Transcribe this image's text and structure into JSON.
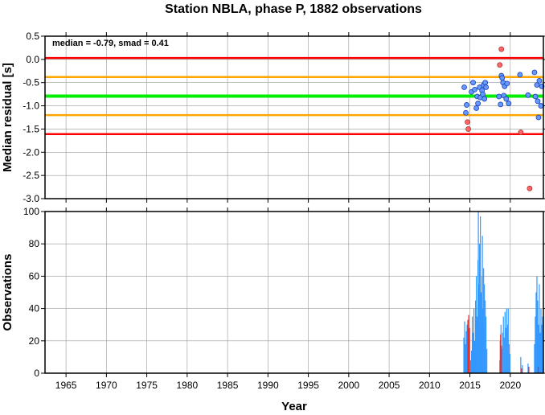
{
  "title": "Station NBLA, phase P, 1882 observations",
  "x_axis_label": "Year",
  "colors": {
    "accent_red": "#ff0000",
    "accent_orange": "#ffa500",
    "accent_green": "#00ee00",
    "point_blue": "#6699ff",
    "point_red": "#ff6666",
    "bar_blue": "#3399ff",
    "bar_red": "#e03030",
    "grid": "#999999"
  },
  "chart_data": [
    {
      "type": "scatter",
      "ylabel": "Median residual [s]",
      "annotation": "median = -0.79, smad = 0.41",
      "xlim": [
        1962.4,
        2024.1
      ],
      "ylim": [
        -3.0,
        0.5
      ],
      "x_ticks": [
        1965,
        1970,
        1975,
        1980,
        1985,
        1990,
        1995,
        2000,
        2005,
        2010,
        2015,
        2020
      ],
      "y_ticks": [
        0.5,
        0.0,
        -0.5,
        -1.0,
        -1.5,
        -2.0,
        -2.5,
        -3.0
      ],
      "y_tick_labels": [
        "0.5",
        "0.0",
        "-0.5",
        "-1.0",
        "-1.5",
        "-2.0",
        "-2.5",
        "-3.0"
      ],
      "grid": true,
      "reference_lines": [
        {
          "y": 0.03,
          "color": "red"
        },
        {
          "y": -0.38,
          "color": "orange"
        },
        {
          "y": -0.79,
          "color": "green"
        },
        {
          "y": -1.2,
          "color": "orange"
        },
        {
          "y": -1.61,
          "color": "red"
        }
      ],
      "series": [
        {
          "color": "blue",
          "points": [
            [
              2014.3,
              -0.6
            ],
            [
              2014.5,
              -1.15
            ],
            [
              2014.6,
              -0.98
            ],
            [
              2015.2,
              -0.7
            ],
            [
              2015.4,
              -0.5
            ],
            [
              2015.6,
              -0.65
            ],
            [
              2015.8,
              -1.05
            ],
            [
              2015.9,
              -0.8
            ],
            [
              2016.0,
              -0.95
            ],
            [
              2016.2,
              -0.6
            ],
            [
              2016.3,
              -0.82
            ],
            [
              2016.5,
              -0.67
            ],
            [
              2016.6,
              -0.75
            ],
            [
              2016.7,
              -0.55
            ],
            [
              2016.8,
              -0.85
            ],
            [
              2016.9,
              -0.5
            ],
            [
              2017.0,
              -0.6
            ],
            [
              2018.6,
              -0.8
            ],
            [
              2018.8,
              -0.97
            ],
            [
              2018.9,
              -0.35
            ],
            [
              2019.0,
              -0.4
            ],
            [
              2019.1,
              -0.5
            ],
            [
              2019.2,
              -0.78
            ],
            [
              2019.3,
              -0.58
            ],
            [
              2019.5,
              -0.85
            ],
            [
              2019.6,
              -0.52
            ],
            [
              2019.8,
              -0.95
            ],
            [
              2021.2,
              -0.33
            ],
            [
              2022.2,
              -0.77
            ],
            [
              2023.0,
              -0.28
            ],
            [
              2023.1,
              -0.8
            ],
            [
              2023.3,
              -0.55
            ],
            [
              2023.4,
              -0.9
            ],
            [
              2023.5,
              -1.25
            ],
            [
              2023.6,
              -0.46
            ],
            [
              2023.8,
              -1.0
            ],
            [
              2023.9,
              -0.58
            ]
          ]
        },
        {
          "color": "red",
          "points": [
            [
              2014.7,
              -1.35
            ],
            [
              2014.8,
              -1.5
            ],
            [
              2018.7,
              -0.12
            ],
            [
              2018.9,
              0.22
            ],
            [
              2021.3,
              -1.57
            ],
            [
              2022.4,
              -2.78
            ]
          ]
        }
      ]
    },
    {
      "type": "bar",
      "ylabel": "Observations",
      "xlim": [
        1962.4,
        2024.1
      ],
      "ylim": [
        0,
        100
      ],
      "x_ticks": [
        1965,
        1970,
        1975,
        1980,
        1985,
        1990,
        1995,
        2000,
        2005,
        2010,
        2015,
        2020
      ],
      "x_tick_labels": [
        "1965",
        "1970",
        "1975",
        "1980",
        "1985",
        "1990",
        "1995",
        "2000",
        "2005",
        "2010",
        "2015",
        "2020"
      ],
      "y_ticks": [
        0,
        20,
        40,
        60,
        80,
        100
      ],
      "y_tick_labels": [
        "0",
        "20",
        "40",
        "60",
        "80",
        "100"
      ],
      "grid": true,
      "series": [
        {
          "color": "blue",
          "bars": [
            [
              2014.25,
              22
            ],
            [
              2014.35,
              32
            ],
            [
              2014.45,
              18
            ],
            [
              2014.55,
              26
            ],
            [
              2014.65,
              30
            ],
            [
              2015.1,
              8
            ],
            [
              2015.2,
              14
            ],
            [
              2015.3,
              35
            ],
            [
              2015.4,
              25
            ],
            [
              2015.5,
              40
            ],
            [
              2015.6,
              20
            ],
            [
              2015.7,
              45
            ],
            [
              2015.8,
              60
            ],
            [
              2015.9,
              35
            ],
            [
              2016.0,
              70
            ],
            [
              2016.05,
              100
            ],
            [
              2016.1,
              55
            ],
            [
              2016.2,
              80
            ],
            [
              2016.25,
              45
            ],
            [
              2016.3,
              97
            ],
            [
              2016.4,
              50
            ],
            [
              2016.45,
              30
            ],
            [
              2016.5,
              60
            ],
            [
              2016.55,
              85
            ],
            [
              2016.6,
              40
            ],
            [
              2016.7,
              65
            ],
            [
              2016.75,
              28
            ],
            [
              2016.8,
              55
            ],
            [
              2016.9,
              45
            ],
            [
              2017.0,
              35
            ],
            [
              2017.1,
              15
            ],
            [
              2018.7,
              8
            ],
            [
              2018.75,
              20
            ],
            [
              2018.85,
              30
            ],
            [
              2018.95,
              15
            ],
            [
              2019.05,
              25
            ],
            [
              2019.15,
              35
            ],
            [
              2019.25,
              22
            ],
            [
              2019.35,
              38
            ],
            [
              2019.45,
              28
            ],
            [
              2019.55,
              40
            ],
            [
              2019.65,
              30
            ],
            [
              2019.75,
              40
            ],
            [
              2019.85,
              18
            ],
            [
              2019.95,
              12
            ],
            [
              2021.3,
              10
            ],
            [
              2021.5,
              5
            ],
            [
              2022.2,
              6
            ],
            [
              2023.0,
              18
            ],
            [
              2023.1,
              35
            ],
            [
              2023.2,
              50
            ],
            [
              2023.3,
              60
            ],
            [
              2023.4,
              45
            ],
            [
              2023.5,
              30
            ],
            [
              2023.6,
              55
            ],
            [
              2023.7,
              25
            ],
            [
              2023.8,
              40
            ],
            [
              2023.9,
              30
            ],
            [
              2024.0,
              35
            ]
          ]
        },
        {
          "color": "red",
          "bars": [
            [
              2014.75,
              33
            ],
            [
              2014.85,
              36
            ],
            [
              2014.95,
              28
            ],
            [
              2018.8,
              24
            ],
            [
              2018.9,
              17
            ],
            [
              2021.4,
              3
            ],
            [
              2022.3,
              4
            ],
            [
              2023.45,
              4
            ]
          ]
        }
      ]
    }
  ]
}
